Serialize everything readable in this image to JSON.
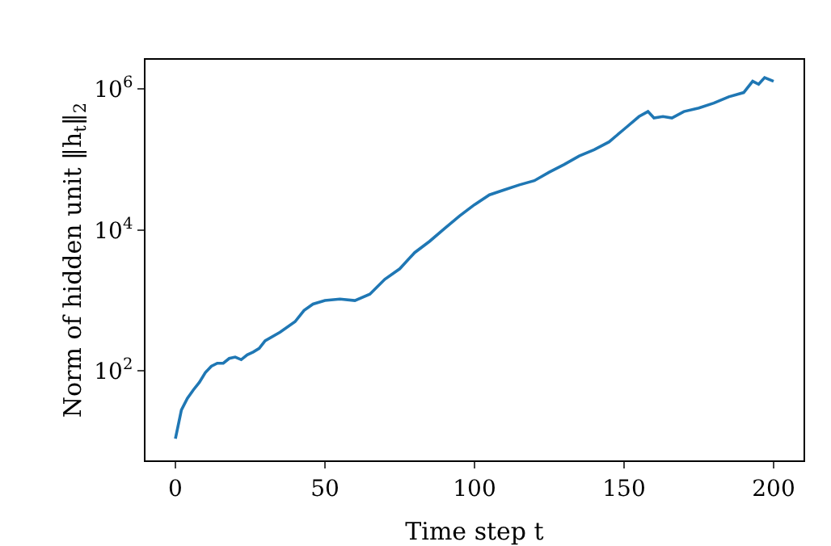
{
  "chart_data": {
    "type": "line",
    "xlabel": "Time step t",
    "ylabel": "Norm of hidden unit ‖h$_{t}$‖$_{2}$",
    "log": true,
    "grid": false,
    "marker": "none",
    "line_style": "solid",
    "xlim": [
      -10,
      210
    ],
    "xticks": [
      0,
      50,
      100,
      150,
      200
    ],
    "ylim": [
      5.4,
      2600000
    ],
    "yticks": [
      {
        "value": 100,
        "label": "10$^{2}$"
      },
      {
        "value": 10000,
        "label": "10$^{4}$"
      },
      {
        "value": 1000000,
        "label": "10$^{6}$"
      }
    ],
    "x": [
      0,
      2,
      4,
      6,
      8,
      10,
      12,
      14,
      16,
      18,
      20,
      22,
      24,
      26,
      28,
      30,
      35,
      40,
      43,
      46,
      50,
      55,
      60,
      65,
      70,
      75,
      80,
      85,
      90,
      95,
      100,
      105,
      110,
      115,
      120,
      125,
      130,
      135,
      140,
      145,
      150,
      155,
      158,
      160,
      163,
      166,
      170,
      175,
      180,
      185,
      190,
      193,
      195,
      197,
      200
    ],
    "series": [
      {
        "color": "#1f77b4",
        "values": [
          11,
          28,
          41,
          54,
          69,
          95,
          117,
          129,
          129,
          151,
          158,
          145,
          170,
          186,
          209,
          269,
          355,
          501,
          724,
          891,
          1000,
          1050,
          1000,
          1230,
          2000,
          2820,
          4790,
          6920,
          10500,
          15800,
          22900,
          31600,
          37200,
          43700,
          50100,
          66100,
          85100,
          112000,
          138000,
          178000,
          269000,
          407000,
          479000,
          389000,
          407000,
          389000,
          479000,
          537000,
          631000,
          776000,
          891000,
          1290000,
          1170000,
          1450000,
          1290000
        ]
      }
    ]
  }
}
